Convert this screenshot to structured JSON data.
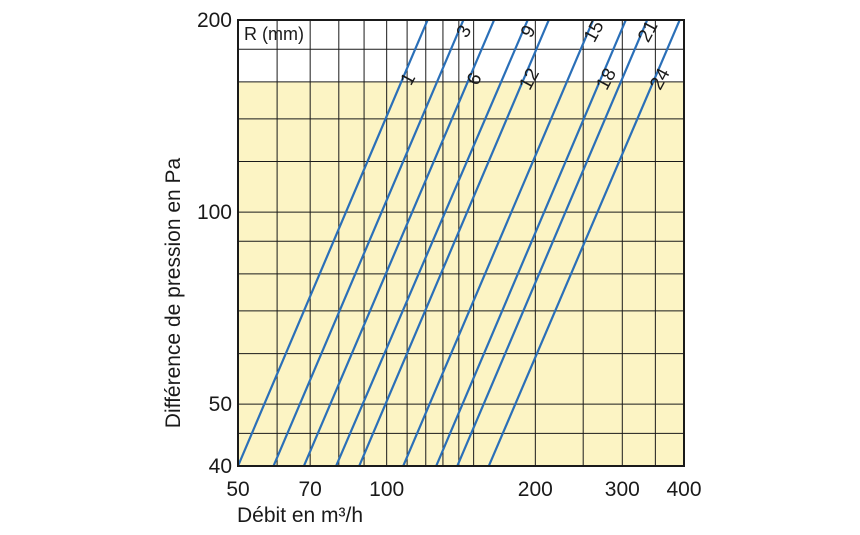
{
  "chart_data": {
    "type": "line",
    "x_scale": "log",
    "y_scale": "log",
    "xlabel": "Débit en m³/h",
    "ylabel": "Différence de pression en Pa",
    "xlim": [
      50,
      400
    ],
    "ylim": [
      40,
      200
    ],
    "x_ticks": [
      50,
      70,
      100,
      200,
      300,
      400
    ],
    "x_tick_labels": [
      "50",
      "70",
      "100",
      "200",
      "300",
      "400"
    ],
    "y_ticks": [
      40,
      50,
      100,
      200
    ],
    "y_tick_labels": [
      "40",
      "50",
      "100",
      "200"
    ],
    "x_gridlines": [
      50,
      60,
      70,
      80,
      90,
      100,
      110,
      120,
      130,
      140,
      150,
      200,
      250,
      300,
      350,
      400
    ],
    "y_gridlines": [
      40,
      45,
      50,
      60,
      70,
      80,
      90,
      100,
      120,
      140,
      160,
      180,
      200
    ],
    "grid": true,
    "plot_background": "#fcf4c4",
    "unshaded_band_ylim": [
      160,
      200
    ],
    "line_color": "#2a6fb8",
    "legend_title": "R (mm)",
    "series": [
      {
        "name": "1",
        "x": [
          50,
          121
        ],
        "y": [
          40,
          200
        ]
      },
      {
        "name": "3",
        "x": [
          59,
          143
        ],
        "y": [
          40,
          200
        ]
      },
      {
        "name": "6",
        "x": [
          68,
          165
        ],
        "y": [
          40,
          200
        ]
      },
      {
        "name": "9",
        "x": [
          79,
          193
        ],
        "y": [
          40,
          200
        ]
      },
      {
        "name": "12",
        "x": [
          88,
          213
        ],
        "y": [
          40,
          200
        ]
      },
      {
        "name": "15",
        "x": [
          108,
          262
        ],
        "y": [
          40,
          200
        ]
      },
      {
        "name": "18",
        "x": [
          126,
          305
        ],
        "y": [
          40,
          200
        ]
      },
      {
        "name": "21",
        "x": [
          139,
          337
        ],
        "y": [
          40,
          200
        ]
      },
      {
        "name": "24",
        "x": [
          161,
          392
        ],
        "y": [
          40,
          200
        ]
      }
    ]
  }
}
